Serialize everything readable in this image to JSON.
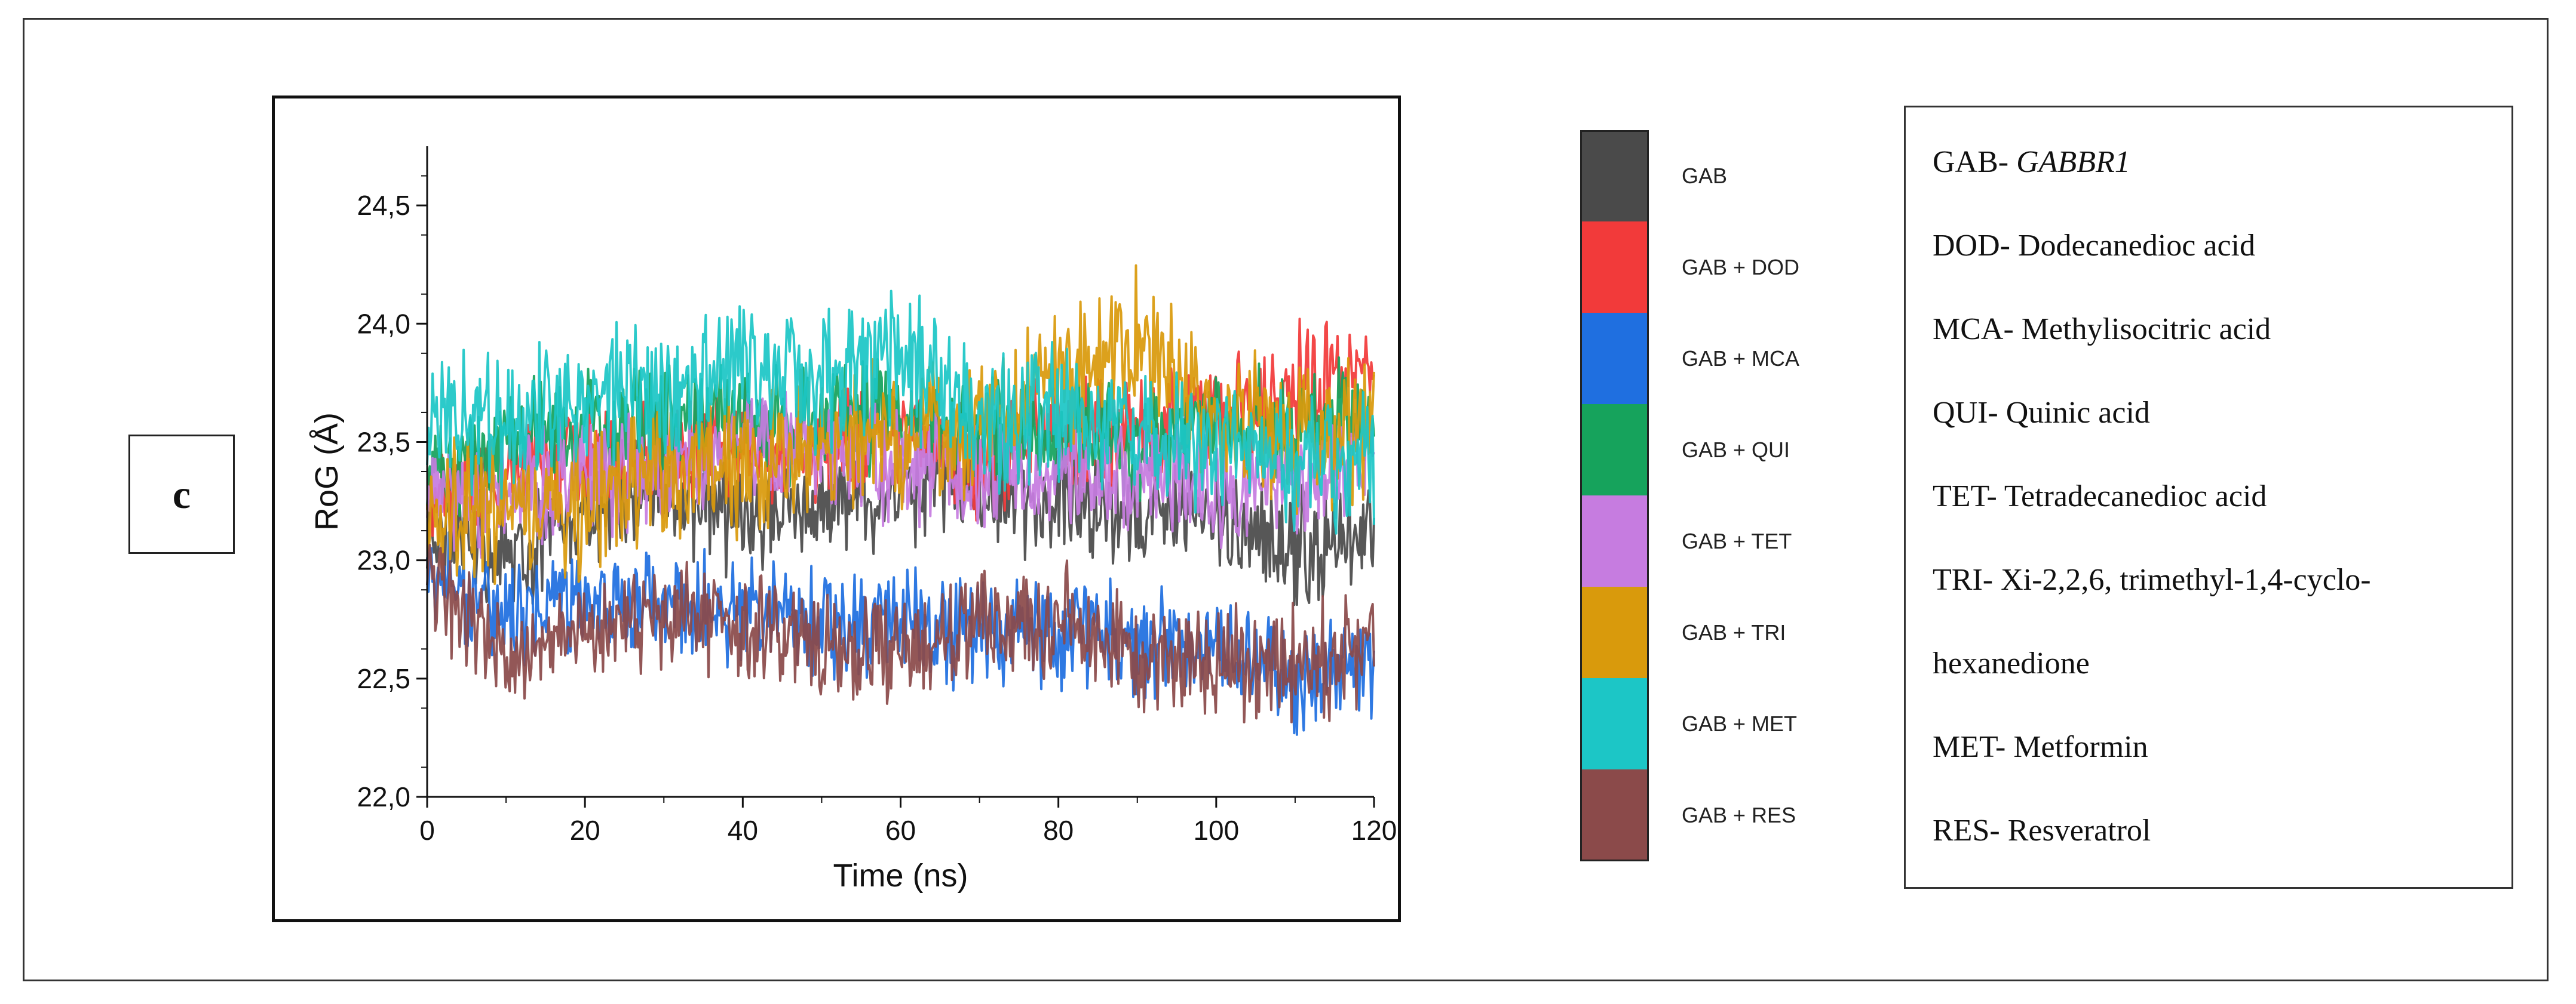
{
  "panel_label": "c",
  "chart_data": {
    "type": "line",
    "xlabel": "Time (ns)",
    "ylabel": "RoG (Å)",
    "xlim": [
      0,
      120
    ],
    "ylim": [
      22.0,
      24.75
    ],
    "x_ticks": [
      0,
      20,
      40,
      60,
      80,
      100,
      120
    ],
    "y_ticks": [
      22.0,
      22.5,
      23.0,
      23.5,
      24.0,
      24.5
    ],
    "x_tick_labels": [
      "0",
      "20",
      "40",
      "60",
      "80",
      "100",
      "120"
    ],
    "y_tick_labels": [
      "22,0",
      "22,5",
      "23,0",
      "23,5",
      "24,0",
      "24,5"
    ],
    "grid": false,
    "series": [
      {
        "name": "GAB",
        "color": "#4a4a4a",
        "x": [
          0,
          10,
          20,
          30,
          40,
          50,
          60,
          70,
          80,
          90,
          100,
          110,
          120
        ],
        "values": [
          23.15,
          23.0,
          23.2,
          23.3,
          23.15,
          23.25,
          23.3,
          23.3,
          23.25,
          23.2,
          23.2,
          23.05,
          23.1
        ]
      },
      {
        "name": "GAB + DOD",
        "color": "#f23a3a",
        "x": [
          0,
          10,
          20,
          30,
          40,
          50,
          60,
          70,
          80,
          90,
          100,
          110,
          120
        ],
        "values": [
          23.3,
          23.35,
          23.45,
          23.45,
          23.5,
          23.45,
          23.55,
          23.4,
          23.55,
          23.5,
          23.6,
          23.75,
          23.85
        ]
      },
      {
        "name": "GAB + MCA",
        "color": "#1f6fe0",
        "x": [
          0,
          10,
          20,
          30,
          40,
          50,
          60,
          70,
          80,
          90,
          100,
          110,
          120
        ],
        "values": [
          23.0,
          22.75,
          22.85,
          22.8,
          22.8,
          22.75,
          22.75,
          22.7,
          22.7,
          22.65,
          22.6,
          22.5,
          22.55
        ]
      },
      {
        "name": "GAB + QUI",
        "color": "#16a35c",
        "x": [
          0,
          10,
          20,
          30,
          40,
          50,
          60,
          70,
          80,
          90,
          100,
          110,
          120
        ],
        "values": [
          23.4,
          23.5,
          23.55,
          23.6,
          23.55,
          23.6,
          23.6,
          23.55,
          23.5,
          23.5,
          23.55,
          23.6,
          23.6
        ]
      },
      {
        "name": "GAB + TET",
        "color": "#c67ce0",
        "x": [
          0,
          10,
          20,
          30,
          40,
          50,
          60,
          70,
          80,
          90,
          100,
          110,
          120
        ],
        "values": [
          23.25,
          23.3,
          23.35,
          23.4,
          23.5,
          23.45,
          23.4,
          23.35,
          23.4,
          23.35,
          23.3,
          23.35,
          23.4
        ]
      },
      {
        "name": "GAB + TRI",
        "color": "#d99a0c",
        "x": [
          0,
          10,
          20,
          30,
          40,
          50,
          60,
          70,
          80,
          90,
          100,
          110,
          120
        ],
        "values": [
          23.2,
          23.25,
          23.2,
          23.4,
          23.35,
          23.55,
          23.5,
          23.6,
          23.75,
          23.95,
          23.6,
          23.5,
          23.55
        ]
      },
      {
        "name": "GAB + MET",
        "color": "#1cc6c6",
        "x": [
          0,
          10,
          20,
          30,
          40,
          50,
          60,
          70,
          80,
          90,
          100,
          110,
          120
        ],
        "values": [
          23.6,
          23.55,
          23.7,
          23.7,
          23.85,
          23.75,
          23.9,
          23.6,
          23.65,
          23.55,
          23.5,
          23.4,
          23.45
        ]
      },
      {
        "name": "GAB + RES",
        "color": "#8b4a4a",
        "x": [
          0,
          10,
          20,
          30,
          40,
          50,
          60,
          70,
          80,
          90,
          100,
          110,
          120
        ],
        "values": [
          22.95,
          22.6,
          22.7,
          22.75,
          22.7,
          22.65,
          22.6,
          22.7,
          22.75,
          22.6,
          22.6,
          22.55,
          22.65
        ]
      }
    ]
  },
  "key": [
    {
      "abbr": "GAB- ",
      "full": "GABBR1",
      "italic": true
    },
    {
      "abbr": "DOD- ",
      "full": "Dodecanedioc acid",
      "italic": false
    },
    {
      "abbr": "MCA- ",
      "full": "Methylisocitric acid",
      "italic": false
    },
    {
      "abbr": "QUI- ",
      "full": "Quinic acid",
      "italic": false
    },
    {
      "abbr": "TET- ",
      "full": "Tetradecanedioc acid",
      "italic": false
    },
    {
      "abbr": "TRI- ",
      "full": "Xi-2,2,6, trimethyl-1,4-cyclo-",
      "italic": false
    },
    {
      "abbr": "",
      "full": "hexanedione",
      "italic": false
    },
    {
      "abbr": "MET- ",
      "full": "Metformin",
      "italic": false
    },
    {
      "abbr": "RES- ",
      "full": "Resveratrol",
      "italic": false
    }
  ]
}
